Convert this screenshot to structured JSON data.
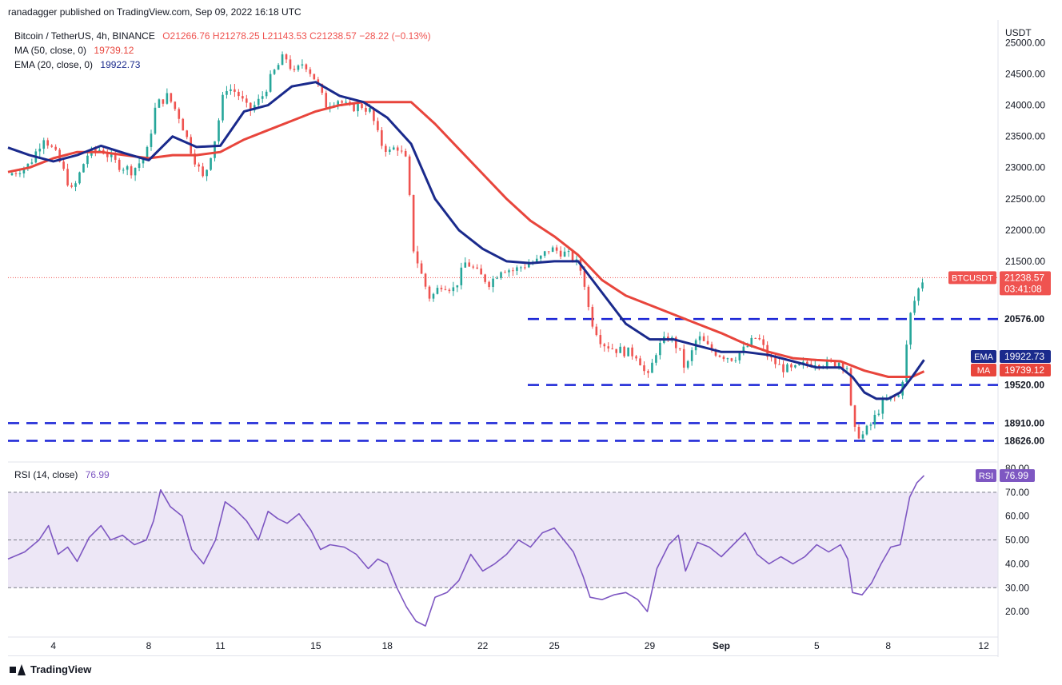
{
  "publisher_line": "ranadagger published on TradingView.com, Sep 09, 2022 16:18 UTC",
  "legend": {
    "symbol": "Bitcoin / TetherUS, 4h, BINANCE",
    "ohlc": "O21266.76  H21278.25  L21143.53  C21238.57  −28.22 (−0.13%)",
    "ma_label": "MA (50, close, 0)",
    "ma_value": "19739.12",
    "ema_label": "EMA (20, close, 0)",
    "ema_value": "19922.73"
  },
  "rsi_legend": {
    "label": "RSI (14, close)",
    "value": "76.99"
  },
  "footer": {
    "brand": "TradingView"
  },
  "colors": {
    "ema": "#1a2a8c",
    "ma": "#e8453c",
    "up": "#26a69a",
    "down": "#ef5350",
    "support": "#1a24d6",
    "rsi": "#7e57c2",
    "rsi_band": "#ede7f6",
    "price_tag": "#ef5350"
  },
  "chart_data": [
    {
      "type": "candlestick",
      "title": "",
      "unit": "USDT",
      "ylim": [
        18300,
        25300
      ],
      "y_ticks": [
        25000,
        24500,
        24000,
        23500,
        23000,
        22500,
        22000,
        21500,
        20576,
        19520,
        18910,
        18626
      ],
      "x_ticks": [
        "4",
        "8",
        "11",
        "15",
        "18",
        "22",
        "25",
        "29",
        "Sep",
        "5",
        "8",
        "12"
      ],
      "x_tick_days": [
        4,
        8,
        11,
        15,
        18,
        22,
        25,
        29,
        32,
        36,
        39,
        43
      ],
      "x_range_days": [
        2.1,
        43.6
      ],
      "last_price": {
        "symbol": "BTCUSDT",
        "value": "21238.57",
        "countdown": "03:41:08",
        "price": 21238.57
      },
      "indicator_tags": [
        {
          "name": "EMA",
          "value": "19922.73",
          "price": 19922.73
        },
        {
          "name": "MA",
          "value": "19739.12",
          "price": 19739.12
        }
      ],
      "support_levels": [
        {
          "value": "20576.00",
          "price": 20576
        },
        {
          "value": "19520.00",
          "price": 19520
        },
        {
          "value": "18910.00",
          "price": 18910
        },
        {
          "value": "18626.00",
          "price": 18626
        }
      ],
      "close_path": [
        [
          2.1,
          22880
        ],
        [
          3.0,
          23050
        ],
        [
          3.6,
          23500
        ],
        [
          4.2,
          23150
        ],
        [
          4.8,
          22600
        ],
        [
          5.4,
          23200
        ],
        [
          6.0,
          23300
        ],
        [
          6.7,
          23050
        ],
        [
          7.3,
          22950
        ],
        [
          7.9,
          23200
        ],
        [
          8.3,
          24000
        ],
        [
          8.8,
          24150
        ],
        [
          9.3,
          23800
        ],
        [
          9.8,
          23250
        ],
        [
          10.3,
          22800
        ],
        [
          10.8,
          23500
        ],
        [
          11.2,
          24300
        ],
        [
          11.7,
          24200
        ],
        [
          12.2,
          23900
        ],
        [
          12.7,
          24100
        ],
        [
          13.2,
          24500
        ],
        [
          13.7,
          24800
        ],
        [
          14.1,
          24500
        ],
        [
          14.5,
          24700
        ],
        [
          15.0,
          24400
        ],
        [
          15.4,
          24000
        ],
        [
          15.9,
          24100
        ],
        [
          16.4,
          23950
        ],
        [
          16.9,
          24000
        ],
        [
          17.3,
          23900
        ],
        [
          17.7,
          23400
        ],
        [
          18.1,
          23250
        ],
        [
          18.4,
          23350
        ],
        [
          18.8,
          23100
        ],
        [
          19.0,
          22200
        ],
        [
          19.1,
          21700
        ],
        [
          19.5,
          21200
        ],
        [
          19.8,
          20900
        ],
        [
          20.3,
          21150
        ],
        [
          20.8,
          21050
        ],
        [
          21.3,
          21500
        ],
        [
          21.8,
          21300
        ],
        [
          22.3,
          21150
        ],
        [
          22.8,
          21400
        ],
        [
          23.3,
          21350
        ],
        [
          23.8,
          21450
        ],
        [
          24.3,
          21500
        ],
        [
          24.8,
          21700
        ],
        [
          25.3,
          21650
        ],
        [
          25.8,
          21550
        ],
        [
          26.2,
          21300
        ],
        [
          26.5,
          20600
        ],
        [
          27.0,
          20200
        ],
        [
          27.5,
          20100
        ],
        [
          28.0,
          20050
        ],
        [
          28.5,
          20000
        ],
        [
          28.9,
          19600
        ],
        [
          29.3,
          20100
        ],
        [
          29.8,
          20300
        ],
        [
          30.2,
          20100
        ],
        [
          30.5,
          19750
        ],
        [
          31.0,
          20300
        ],
        [
          31.5,
          20100
        ],
        [
          32.0,
          20000
        ],
        [
          32.5,
          19950
        ],
        [
          33.0,
          20100
        ],
        [
          33.5,
          20300
        ],
        [
          34.0,
          19950
        ],
        [
          34.5,
          19800
        ],
        [
          35.0,
          19750
        ],
        [
          35.5,
          19850
        ],
        [
          36.0,
          19900
        ],
        [
          36.5,
          19850
        ],
        [
          37.0,
          19900
        ],
        [
          37.3,
          19800
        ],
        [
          37.5,
          18800
        ],
        [
          37.9,
          18700
        ],
        [
          38.3,
          18900
        ],
        [
          38.7,
          19200
        ],
        [
          39.1,
          19300
        ],
        [
          39.5,
          19350
        ],
        [
          39.7,
          19900
        ],
        [
          39.9,
          20600
        ],
        [
          40.2,
          21000
        ],
        [
          40.5,
          21250
        ]
      ],
      "ema_path": [
        [
          2.1,
          23320
        ],
        [
          3.0,
          23200
        ],
        [
          4.0,
          23100
        ],
        [
          5.0,
          23200
        ],
        [
          6.0,
          23350
        ],
        [
          7.0,
          23230
        ],
        [
          8.0,
          23120
        ],
        [
          9.0,
          23500
        ],
        [
          10.0,
          23330
        ],
        [
          11.0,
          23350
        ],
        [
          12.0,
          23900
        ],
        [
          13.0,
          24000
        ],
        [
          14.0,
          24300
        ],
        [
          15.0,
          24370
        ],
        [
          16.0,
          24150
        ],
        [
          17.0,
          24050
        ],
        [
          18.0,
          23800
        ],
        [
          19.0,
          23380
        ],
        [
          20.0,
          22500
        ],
        [
          21.0,
          22000
        ],
        [
          22.0,
          21700
        ],
        [
          23.0,
          21500
        ],
        [
          24.0,
          21470
        ],
        [
          25.0,
          21500
        ],
        [
          26.0,
          21500
        ],
        [
          27.0,
          21000
        ],
        [
          28.0,
          20500
        ],
        [
          29.0,
          20250
        ],
        [
          30.0,
          20250
        ],
        [
          31.0,
          20150
        ],
        [
          32.0,
          20050
        ],
        [
          33.0,
          20050
        ],
        [
          34.0,
          20000
        ],
        [
          35.0,
          19900
        ],
        [
          36.0,
          19800
        ],
        [
          37.0,
          19800
        ],
        [
          37.5,
          19650
        ],
        [
          38.0,
          19400
        ],
        [
          38.5,
          19300
        ],
        [
          39.0,
          19300
        ],
        [
          39.5,
          19400
        ],
        [
          40.0,
          19650
        ],
        [
          40.5,
          19922
        ]
      ],
      "ma_path": [
        [
          2.1,
          22930
        ],
        [
          3.0,
          23000
        ],
        [
          4.0,
          23150
        ],
        [
          5.0,
          23250
        ],
        [
          6.0,
          23250
        ],
        [
          7.0,
          23200
        ],
        [
          8.0,
          23150
        ],
        [
          9.0,
          23200
        ],
        [
          10.0,
          23200
        ],
        [
          11.0,
          23250
        ],
        [
          12.0,
          23450
        ],
        [
          13.0,
          23600
        ],
        [
          14.0,
          23750
        ],
        [
          15.0,
          23900
        ],
        [
          16.0,
          24000
        ],
        [
          17.0,
          24050
        ],
        [
          18.0,
          24050
        ],
        [
          19.0,
          24050
        ],
        [
          20.0,
          23700
        ],
        [
          21.0,
          23300
        ],
        [
          22.0,
          22900
        ],
        [
          23.0,
          22500
        ],
        [
          24.0,
          22150
        ],
        [
          25.0,
          21900
        ],
        [
          26.0,
          21600
        ],
        [
          27.0,
          21200
        ],
        [
          28.0,
          20950
        ],
        [
          29.0,
          20800
        ],
        [
          30.0,
          20650
        ],
        [
          31.0,
          20500
        ],
        [
          32.0,
          20350
        ],
        [
          33.0,
          20180
        ],
        [
          34.0,
          20050
        ],
        [
          35.0,
          19950
        ],
        [
          36.0,
          19920
        ],
        [
          37.0,
          19900
        ],
        [
          38.0,
          19750
        ],
        [
          39.0,
          19650
        ],
        [
          40.0,
          19650
        ],
        [
          40.5,
          19739
        ]
      ]
    },
    {
      "type": "line",
      "title": "",
      "series": [
        {
          "name": "RSI"
        }
      ],
      "ylim": [
        10,
        82
      ],
      "y_ticks": [
        80,
        70,
        60,
        50,
        40,
        30,
        20
      ],
      "band": [
        30,
        70
      ],
      "rsi_path": [
        [
          2.1,
          42
        ],
        [
          2.8,
          45
        ],
        [
          3.4,
          50
        ],
        [
          3.8,
          56
        ],
        [
          4.2,
          44
        ],
        [
          4.6,
          47
        ],
        [
          5.0,
          41
        ],
        [
          5.5,
          51
        ],
        [
          6.0,
          56
        ],
        [
          6.4,
          50
        ],
        [
          6.9,
          52
        ],
        [
          7.4,
          48
        ],
        [
          7.9,
          50
        ],
        [
          8.2,
          58
        ],
        [
          8.5,
          71
        ],
        [
          8.9,
          64
        ],
        [
          9.4,
          60
        ],
        [
          9.8,
          46
        ],
        [
          10.3,
          40
        ],
        [
          10.8,
          50
        ],
        [
          11.2,
          66
        ],
        [
          11.6,
          63
        ],
        [
          12.1,
          58
        ],
        [
          12.6,
          50
        ],
        [
          13.0,
          62
        ],
        [
          13.4,
          59
        ],
        [
          13.8,
          57
        ],
        [
          14.3,
          61
        ],
        [
          14.8,
          54
        ],
        [
          15.2,
          46
        ],
        [
          15.6,
          48
        ],
        [
          16.2,
          47
        ],
        [
          16.7,
          44
        ],
        [
          17.2,
          38
        ],
        [
          17.6,
          42
        ],
        [
          18.0,
          40
        ],
        [
          18.4,
          30
        ],
        [
          18.8,
          22
        ],
        [
          19.2,
          16
        ],
        [
          19.6,
          14
        ],
        [
          20.0,
          26
        ],
        [
          20.5,
          28
        ],
        [
          21.0,
          33
        ],
        [
          21.5,
          44
        ],
        [
          22.0,
          37
        ],
        [
          22.5,
          40
        ],
        [
          23.0,
          44
        ],
        [
          23.5,
          50
        ],
        [
          24.0,
          47
        ],
        [
          24.5,
          53
        ],
        [
          25.0,
          55
        ],
        [
          25.4,
          50
        ],
        [
          25.8,
          45
        ],
        [
          26.2,
          35
        ],
        [
          26.5,
          26
        ],
        [
          27.0,
          25
        ],
        [
          27.5,
          27
        ],
        [
          28.0,
          28
        ],
        [
          28.5,
          25
        ],
        [
          28.9,
          20
        ],
        [
          29.3,
          38
        ],
        [
          29.8,
          48
        ],
        [
          30.2,
          52
        ],
        [
          30.5,
          37
        ],
        [
          31.0,
          49
        ],
        [
          31.5,
          47
        ],
        [
          32.0,
          43
        ],
        [
          32.5,
          48
        ],
        [
          33.0,
          53
        ],
        [
          33.5,
          44
        ],
        [
          34.0,
          40
        ],
        [
          34.5,
          43
        ],
        [
          35.0,
          40
        ],
        [
          35.5,
          43
        ],
        [
          36.0,
          48
        ],
        [
          36.5,
          45
        ],
        [
          37.0,
          48
        ],
        [
          37.3,
          42
        ],
        [
          37.5,
          28
        ],
        [
          37.9,
          27
        ],
        [
          38.3,
          32
        ],
        [
          38.7,
          40
        ],
        [
          39.1,
          47
        ],
        [
          39.5,
          48
        ],
        [
          39.7,
          58
        ],
        [
          39.9,
          68
        ],
        [
          40.2,
          74
        ],
        [
          40.5,
          77
        ]
      ]
    }
  ]
}
